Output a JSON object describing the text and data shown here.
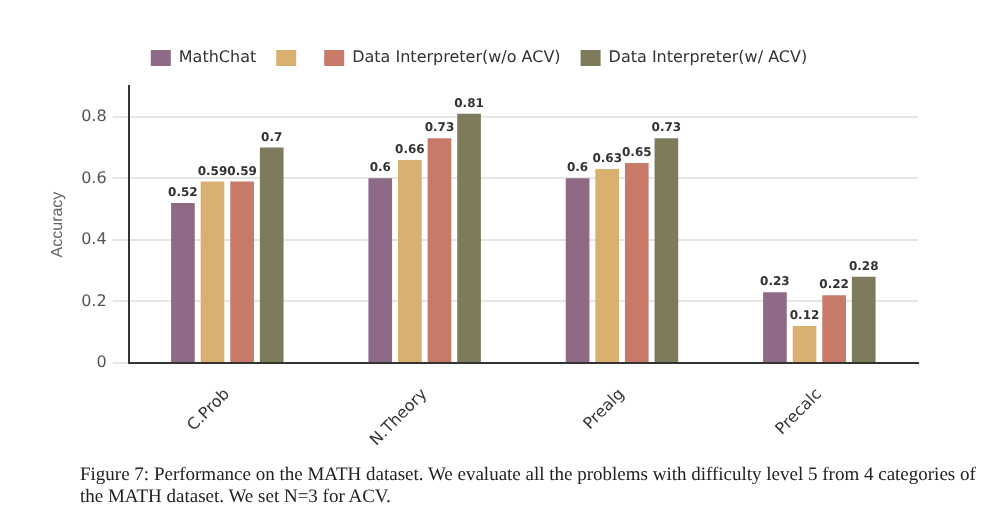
{
  "chart_data": {
    "type": "bar",
    "ylabel": "Accuracy",
    "categories": [
      "C.Prob",
      "N.Theory",
      "Prealg",
      "Precalc"
    ],
    "series": [
      {
        "name": "MathChat",
        "color": "#8e6a86",
        "values": [
          0.52,
          0.6,
          0.6,
          0.23
        ]
      },
      {
        "color": "#d8b070",
        "values": [
          0.59,
          0.66,
          0.63,
          0.12
        ]
      },
      {
        "name": "Data Interpreter(w/o ACV)",
        "color": "#c87a68",
        "values": [
          0.59,
          0.73,
          0.65,
          0.22
        ]
      },
      {
        "name": "Data Interpreter(w/ ACV)",
        "color": "#7d7b5a",
        "values": [
          0.7,
          0.81,
          0.73,
          0.28
        ]
      }
    ],
    "ylim": [
      0,
      0.9
    ],
    "yticks": [
      0,
      0.2,
      0.4,
      0.6,
      0.8
    ],
    "grid": "y",
    "legend": "top",
    "data_labels": true,
    "annotations": [
      "Figure 7: Performance on the MATH dataset. We evaluate all the problems with difficulty level 5 from 4 categories of the MATH dataset. We set N=3 for ACV."
    ]
  }
}
